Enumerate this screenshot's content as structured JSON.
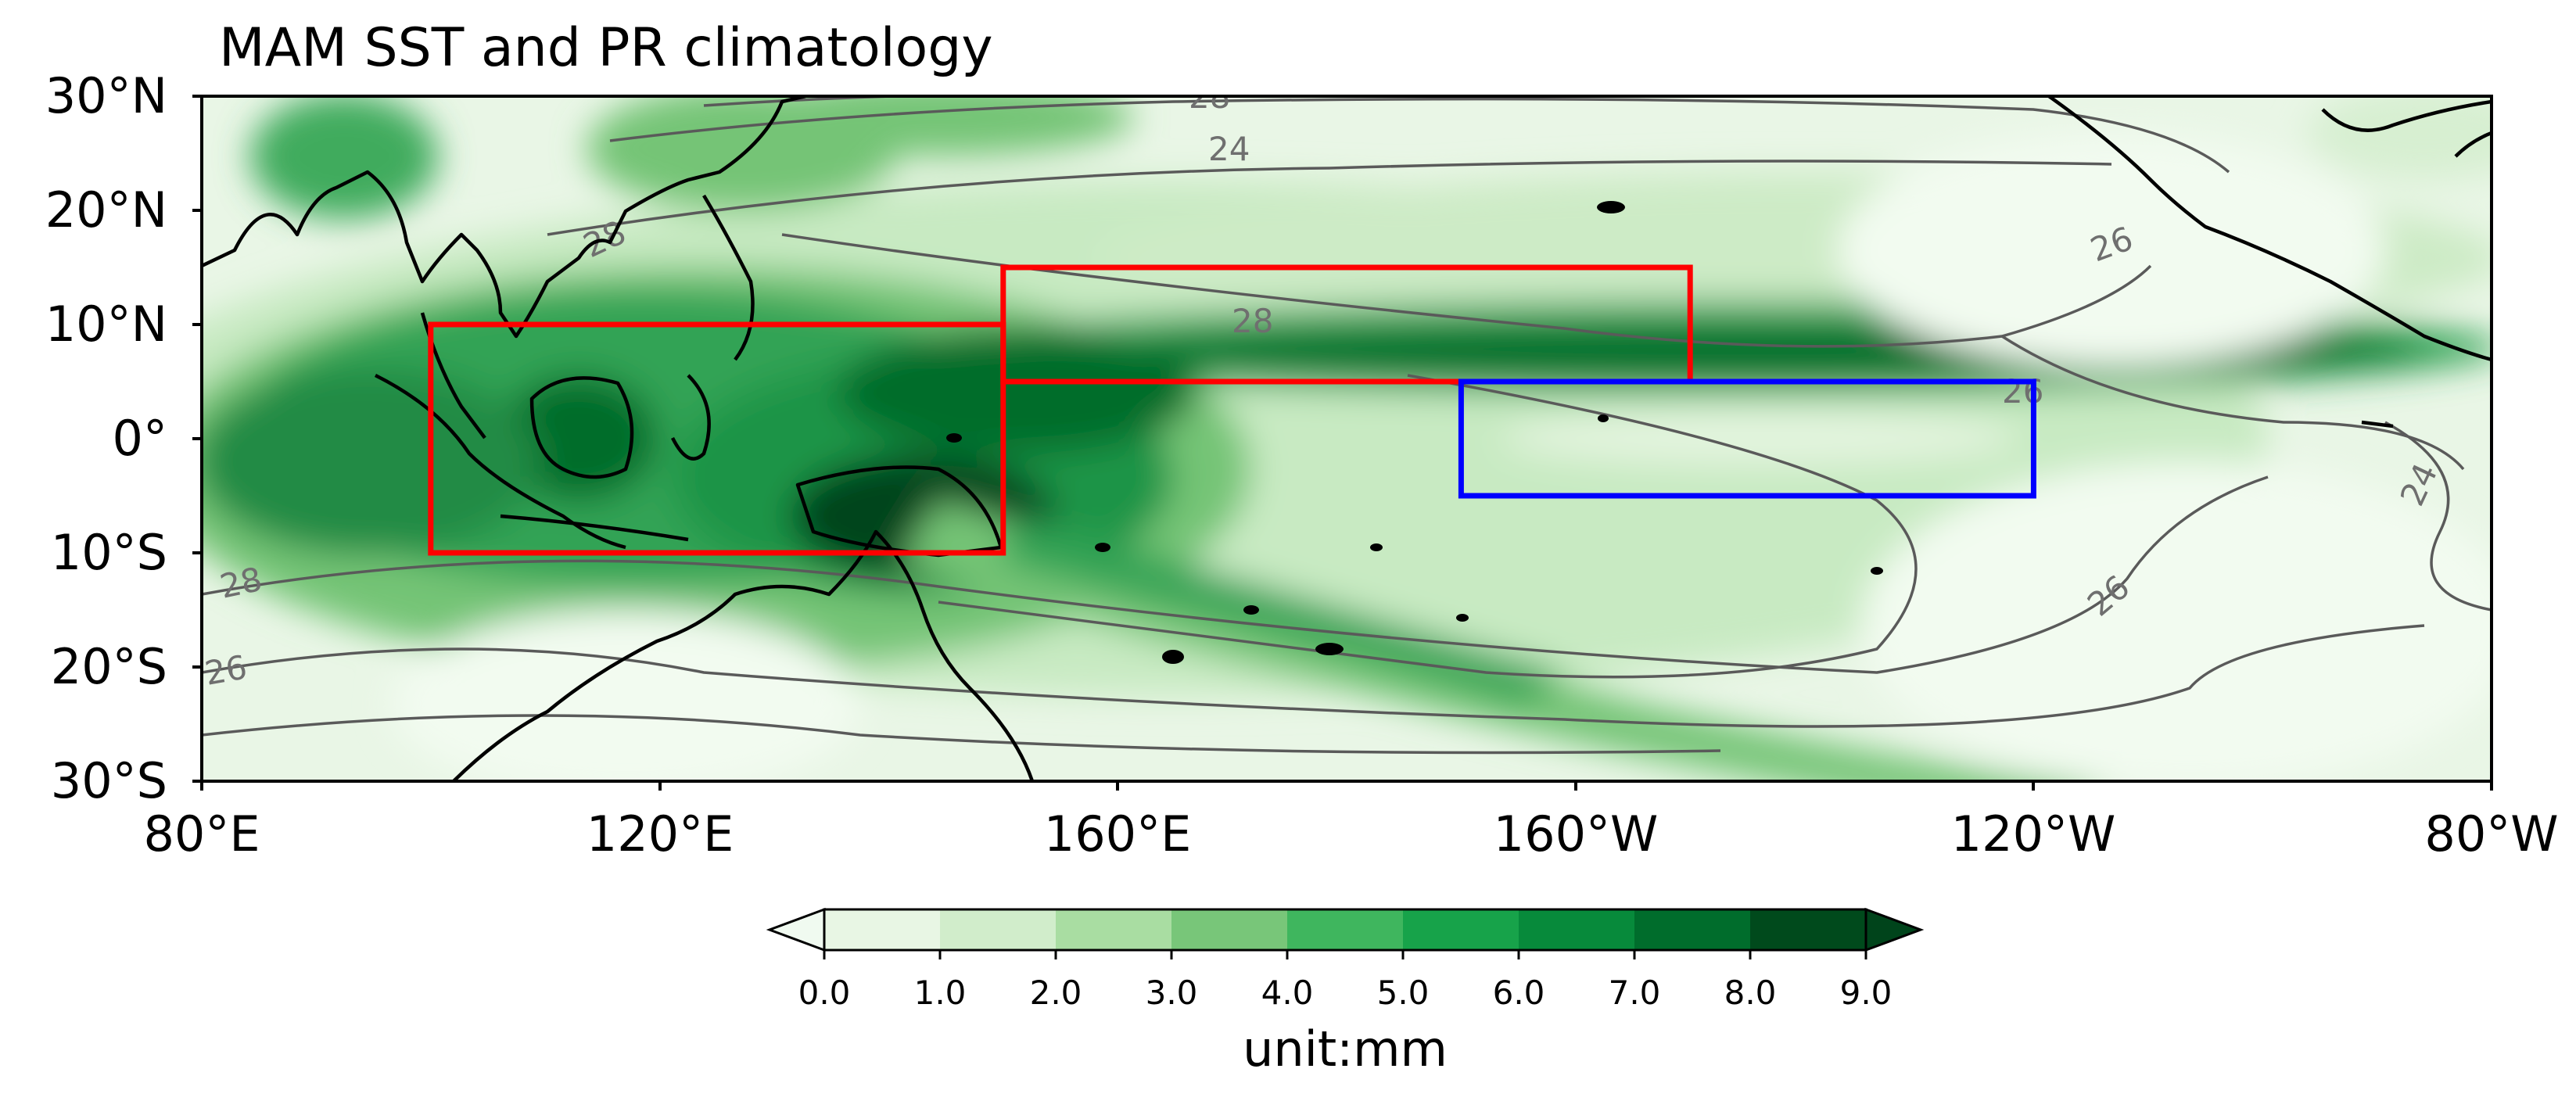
{
  "title": "MAM SST and PR climatology",
  "map": {
    "lat_ticks": [
      "30°N",
      "20°N",
      "10°N",
      "0°",
      "10°S",
      "20°S",
      "30°S"
    ],
    "lon_ticks": [
      "80°E",
      "120°E",
      "160°E",
      "160°W",
      "120°W",
      "80°W"
    ],
    "extent": {
      "lon": [
        80,
        280
      ],
      "lat": [
        -30,
        30
      ]
    },
    "sst_contour_labels": [
      "28",
      "24",
      "28",
      "26",
      "28",
      "26",
      "28",
      "26",
      "26",
      "24"
    ],
    "regions": [
      {
        "name": "box-west",
        "color": "#ff0000",
        "lon": [
          100,
          150
        ],
        "lat": [
          -10,
          10
        ]
      },
      {
        "name": "box-north",
        "color": "#ff0000",
        "lon": [
          150,
          210
        ],
        "lat": [
          5,
          15
        ]
      },
      {
        "name": "box-east",
        "color": "#0000ff",
        "lon": [
          190,
          240
        ],
        "lat": [
          -5,
          5
        ]
      }
    ]
  },
  "colorbar": {
    "label": "unit:mm",
    "ticks": [
      "0.0",
      "1.0",
      "2.0",
      "3.0",
      "4.0",
      "5.0",
      "6.0",
      "7.0",
      "8.0",
      "9.0"
    ],
    "colors": [
      "#f0faf0",
      "#e8f6e4",
      "#d1edcb",
      "#a9dda2",
      "#78c679",
      "#3fb65e",
      "#17a34a",
      "#078a3b",
      "#006d2c",
      "#004a1c",
      "#00441b"
    ]
  }
}
